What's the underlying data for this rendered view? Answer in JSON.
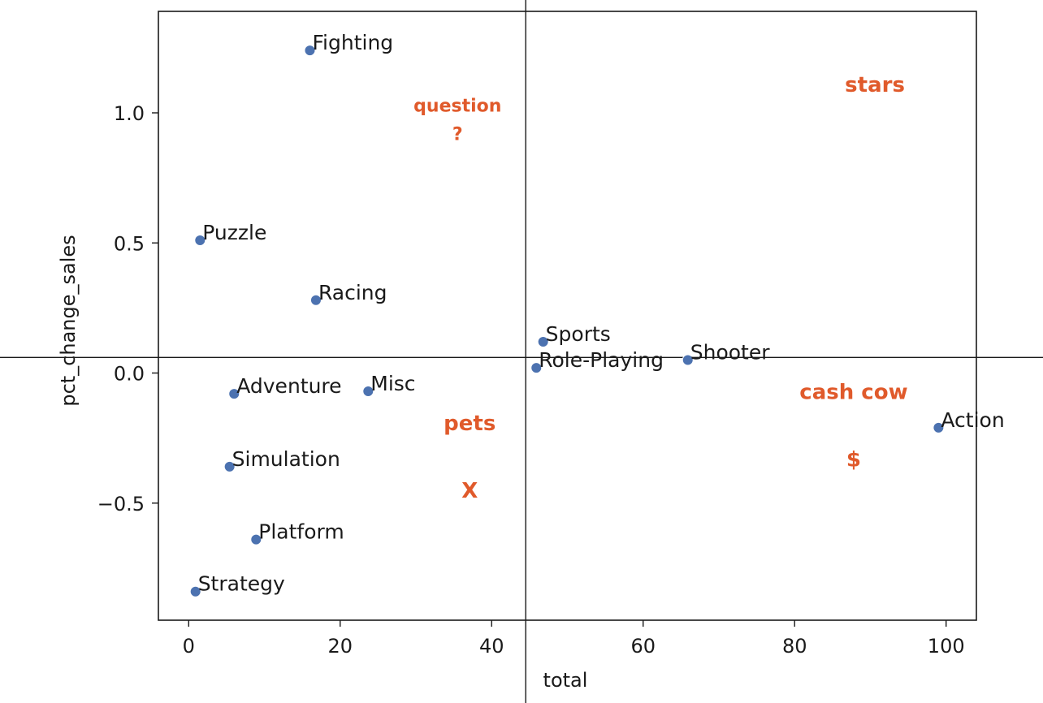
{
  "chart_data": {
    "type": "scatter",
    "xlabel": "total",
    "ylabel": "pct_change_sales",
    "xlim": [
      -4,
      104
    ],
    "ylim": [
      -0.95,
      1.39
    ],
    "xticks": [
      0,
      20,
      40,
      60,
      80,
      100
    ],
    "xtick_labels": [
      "0",
      "20",
      "40",
      "60",
      "80",
      "100"
    ],
    "yticks": [
      -0.5,
      0.0,
      0.5,
      1.0
    ],
    "ytick_labels": [
      "−0.5",
      "0.0",
      "0.5",
      "1.0"
    ],
    "grid": false,
    "marker_color": "#4c72b0",
    "reference_lines": {
      "x": 44.5,
      "y": 0.06
    },
    "points": [
      {
        "label": "Fighting",
        "x": 16.0,
        "y": 1.24
      },
      {
        "label": "Puzzle",
        "x": 1.5,
        "y": 0.51
      },
      {
        "label": "Racing",
        "x": 16.8,
        "y": 0.28
      },
      {
        "label": "Sports",
        "x": 46.8,
        "y": 0.12
      },
      {
        "label": "Shooter",
        "x": 65.9,
        "y": 0.05
      },
      {
        "label": "Role-Playing",
        "x": 45.9,
        "y": 0.02
      },
      {
        "label": "Adventure",
        "x": 6.0,
        "y": -0.08
      },
      {
        "label": "Misc",
        "x": 23.7,
        "y": -0.07
      },
      {
        "label": "Action",
        "x": 99.0,
        "y": -0.21
      },
      {
        "label": "Simulation",
        "x": 5.4,
        "y": -0.36
      },
      {
        "label": "Platform",
        "x": 8.9,
        "y": -0.64
      },
      {
        "label": "Strategy",
        "x": 0.9,
        "y": -0.84
      }
    ],
    "annotations": [
      {
        "text": "stars",
        "x": 90.6,
        "y": 1.11,
        "color": "#e05a2b",
        "size": "large"
      },
      {
        "text": "question",
        "x": 35.5,
        "y": 1.03,
        "color": "#e05a2b",
        "size": "small"
      },
      {
        "text": "?",
        "x": 35.5,
        "y": 0.92,
        "color": "#e05a2b",
        "size": "small"
      },
      {
        "text": "cash cow",
        "x": 87.8,
        "y": -0.07,
        "color": "#e05a2b",
        "size": "large"
      },
      {
        "text": "$",
        "x": 87.8,
        "y": -0.33,
        "color": "#e05a2b",
        "size": "large"
      },
      {
        "text": "pets",
        "x": 37.1,
        "y": -0.19,
        "color": "#e05a2b",
        "size": "large"
      },
      {
        "text": "X",
        "x": 37.1,
        "y": -0.45,
        "color": "#e05a2b",
        "size": "large"
      }
    ]
  }
}
